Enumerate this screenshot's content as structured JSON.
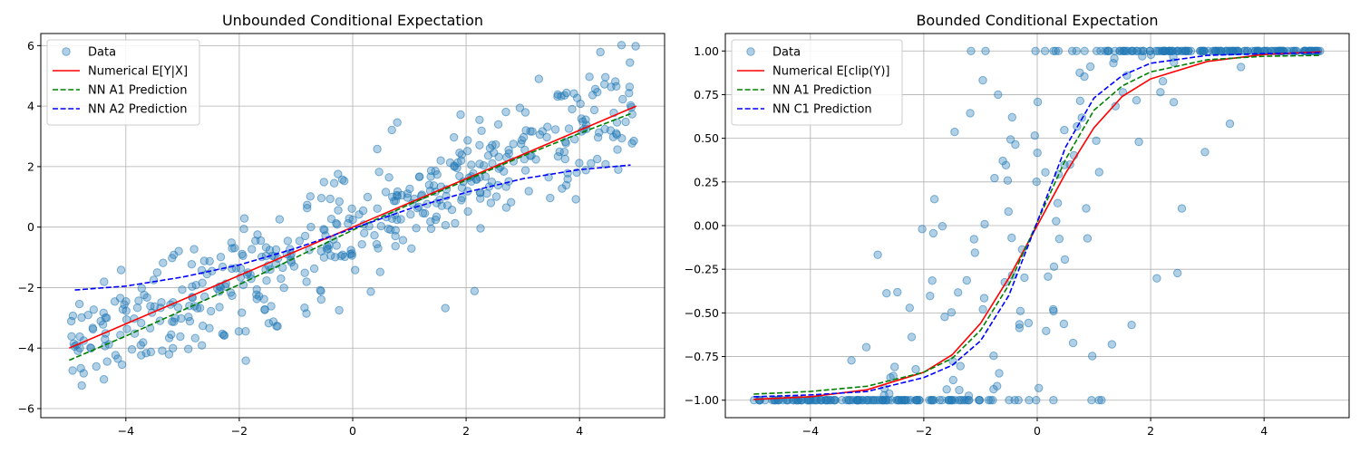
{
  "chart_data": [
    {
      "type": "scatter",
      "title": "Unbounded Conditional Expectation",
      "xlabel": "",
      "ylabel": "",
      "xlim": [
        -5.5,
        5.5
      ],
      "ylim": [
        -6.3,
        6.4
      ],
      "xticks": [
        -4,
        -2,
        0,
        2,
        4
      ],
      "yticks": [
        -6,
        -4,
        -2,
        0,
        2,
        4,
        6
      ],
      "grid": true,
      "legend_position": "top-left",
      "series": [
        {
          "name": "Data",
          "kind": "scatter",
          "color": "#1f77b4",
          "generator": "linear_noise"
        },
        {
          "name": "Numerical E[Y|X]",
          "kind": "line",
          "style": "solid",
          "color": "#ff0000",
          "x": [
            -5,
            5
          ],
          "y": [
            -4,
            4
          ]
        },
        {
          "name": "NN A1 Prediction",
          "kind": "line",
          "style": "dashed",
          "color": "#008000",
          "x": [
            -5,
            -4,
            -3,
            -2,
            -1,
            0,
            1,
            2,
            3,
            4,
            4.9
          ],
          "y": [
            -4.4,
            -3.6,
            -2.75,
            -1.9,
            -1.0,
            -0.1,
            0.75,
            1.55,
            2.35,
            3.1,
            3.75
          ]
        },
        {
          "name": "NN A2 Prediction",
          "kind": "line",
          "style": "dashed",
          "color": "#0000ff",
          "x": [
            -4.9,
            -4,
            -3,
            -2,
            -1,
            0,
            1,
            2,
            3,
            4,
            4.9
          ],
          "y": [
            -2.08,
            -1.95,
            -1.65,
            -1.25,
            -0.7,
            -0.05,
            0.6,
            1.15,
            1.6,
            1.9,
            2.05
          ]
        }
      ]
    },
    {
      "type": "scatter",
      "title": "Bounded Conditional Expectation",
      "xlabel": "",
      "ylabel": "",
      "xlim": [
        -5.5,
        5.5
      ],
      "ylim": [
        -1.1,
        1.1
      ],
      "xticks": [
        -4,
        -2,
        0,
        2,
        4
      ],
      "yticks": [
        -1.0,
        -0.75,
        -0.5,
        -0.25,
        0.0,
        0.25,
        0.5,
        0.75,
        1.0
      ],
      "ytick_labels": [
        "−1.00",
        "−0.75",
        "−0.50",
        "−0.25",
        "0.00",
        "0.25",
        "0.50",
        "0.75",
        "1.00"
      ],
      "grid": true,
      "legend_position": "top-left",
      "series": [
        {
          "name": "Data",
          "kind": "scatter",
          "color": "#1f77b4",
          "generator": "clipped_noise"
        },
        {
          "name": "Numerical E[clip(Y)]",
          "kind": "line",
          "style": "solid",
          "color": "#ff0000",
          "x": [
            -5,
            -4,
            -3,
            -2,
            -1.5,
            -1,
            -0.5,
            0,
            0.5,
            1,
            1.5,
            2,
            3,
            4,
            5
          ],
          "y": [
            -0.995,
            -0.98,
            -0.94,
            -0.84,
            -0.74,
            -0.56,
            -0.3,
            0.0,
            0.3,
            0.56,
            0.74,
            0.84,
            0.94,
            0.98,
            0.995
          ]
        },
        {
          "name": "NN A1 Prediction",
          "kind": "line",
          "style": "dashed",
          "color": "#008000",
          "x": [
            -5,
            -4,
            -3,
            -2,
            -1.5,
            -1,
            -0.5,
            0,
            0.5,
            1,
            1.5,
            2,
            3,
            4,
            5
          ],
          "y": [
            -0.965,
            -0.95,
            -0.92,
            -0.84,
            -0.76,
            -0.6,
            -0.34,
            0.02,
            0.38,
            0.66,
            0.8,
            0.88,
            0.95,
            0.97,
            0.975
          ]
        },
        {
          "name": "NN C1 Prediction",
          "kind": "line",
          "style": "dashed",
          "color": "#0000ff",
          "x": [
            -5,
            -4,
            -3,
            -2,
            -1.5,
            -1,
            -0.5,
            0,
            0.5,
            1,
            1.5,
            2,
            3,
            4,
            5
          ],
          "y": [
            -0.98,
            -0.97,
            -0.95,
            -0.87,
            -0.8,
            -0.66,
            -0.4,
            0.02,
            0.45,
            0.73,
            0.86,
            0.93,
            0.975,
            0.985,
            0.99
          ]
        }
      ]
    }
  ]
}
